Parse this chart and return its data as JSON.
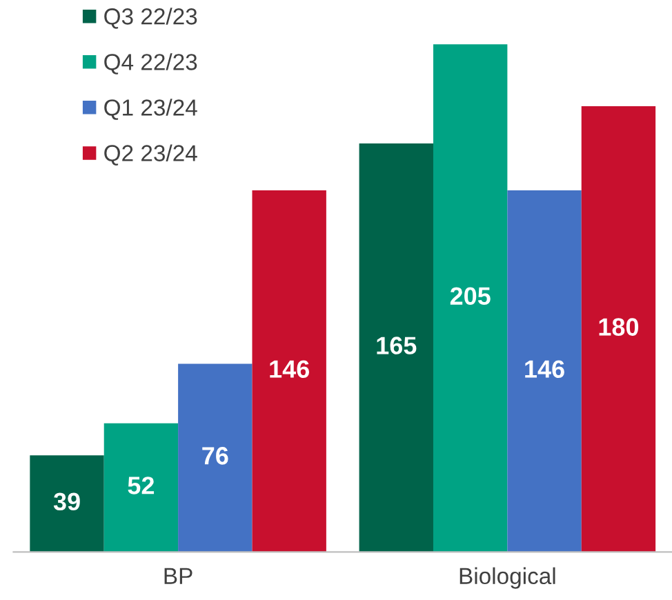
{
  "chart_data": {
    "type": "bar",
    "categories": [
      "BP",
      "Biological"
    ],
    "series": [
      {
        "name": "Q3 22/23",
        "color": "#00634a",
        "values": [
          39,
          165
        ]
      },
      {
        "name": "Q4 22/23",
        "color": "#00a384",
        "values": [
          52,
          205
        ]
      },
      {
        "name": "Q1 23/24",
        "color": "#4472c4",
        "values": [
          76,
          146
        ]
      },
      {
        "name": "Q2 23/24",
        "color": "#c8102e",
        "values": [
          146,
          180
        ]
      }
    ],
    "data_labels": true,
    "legend": "top left",
    "grid": false
  }
}
